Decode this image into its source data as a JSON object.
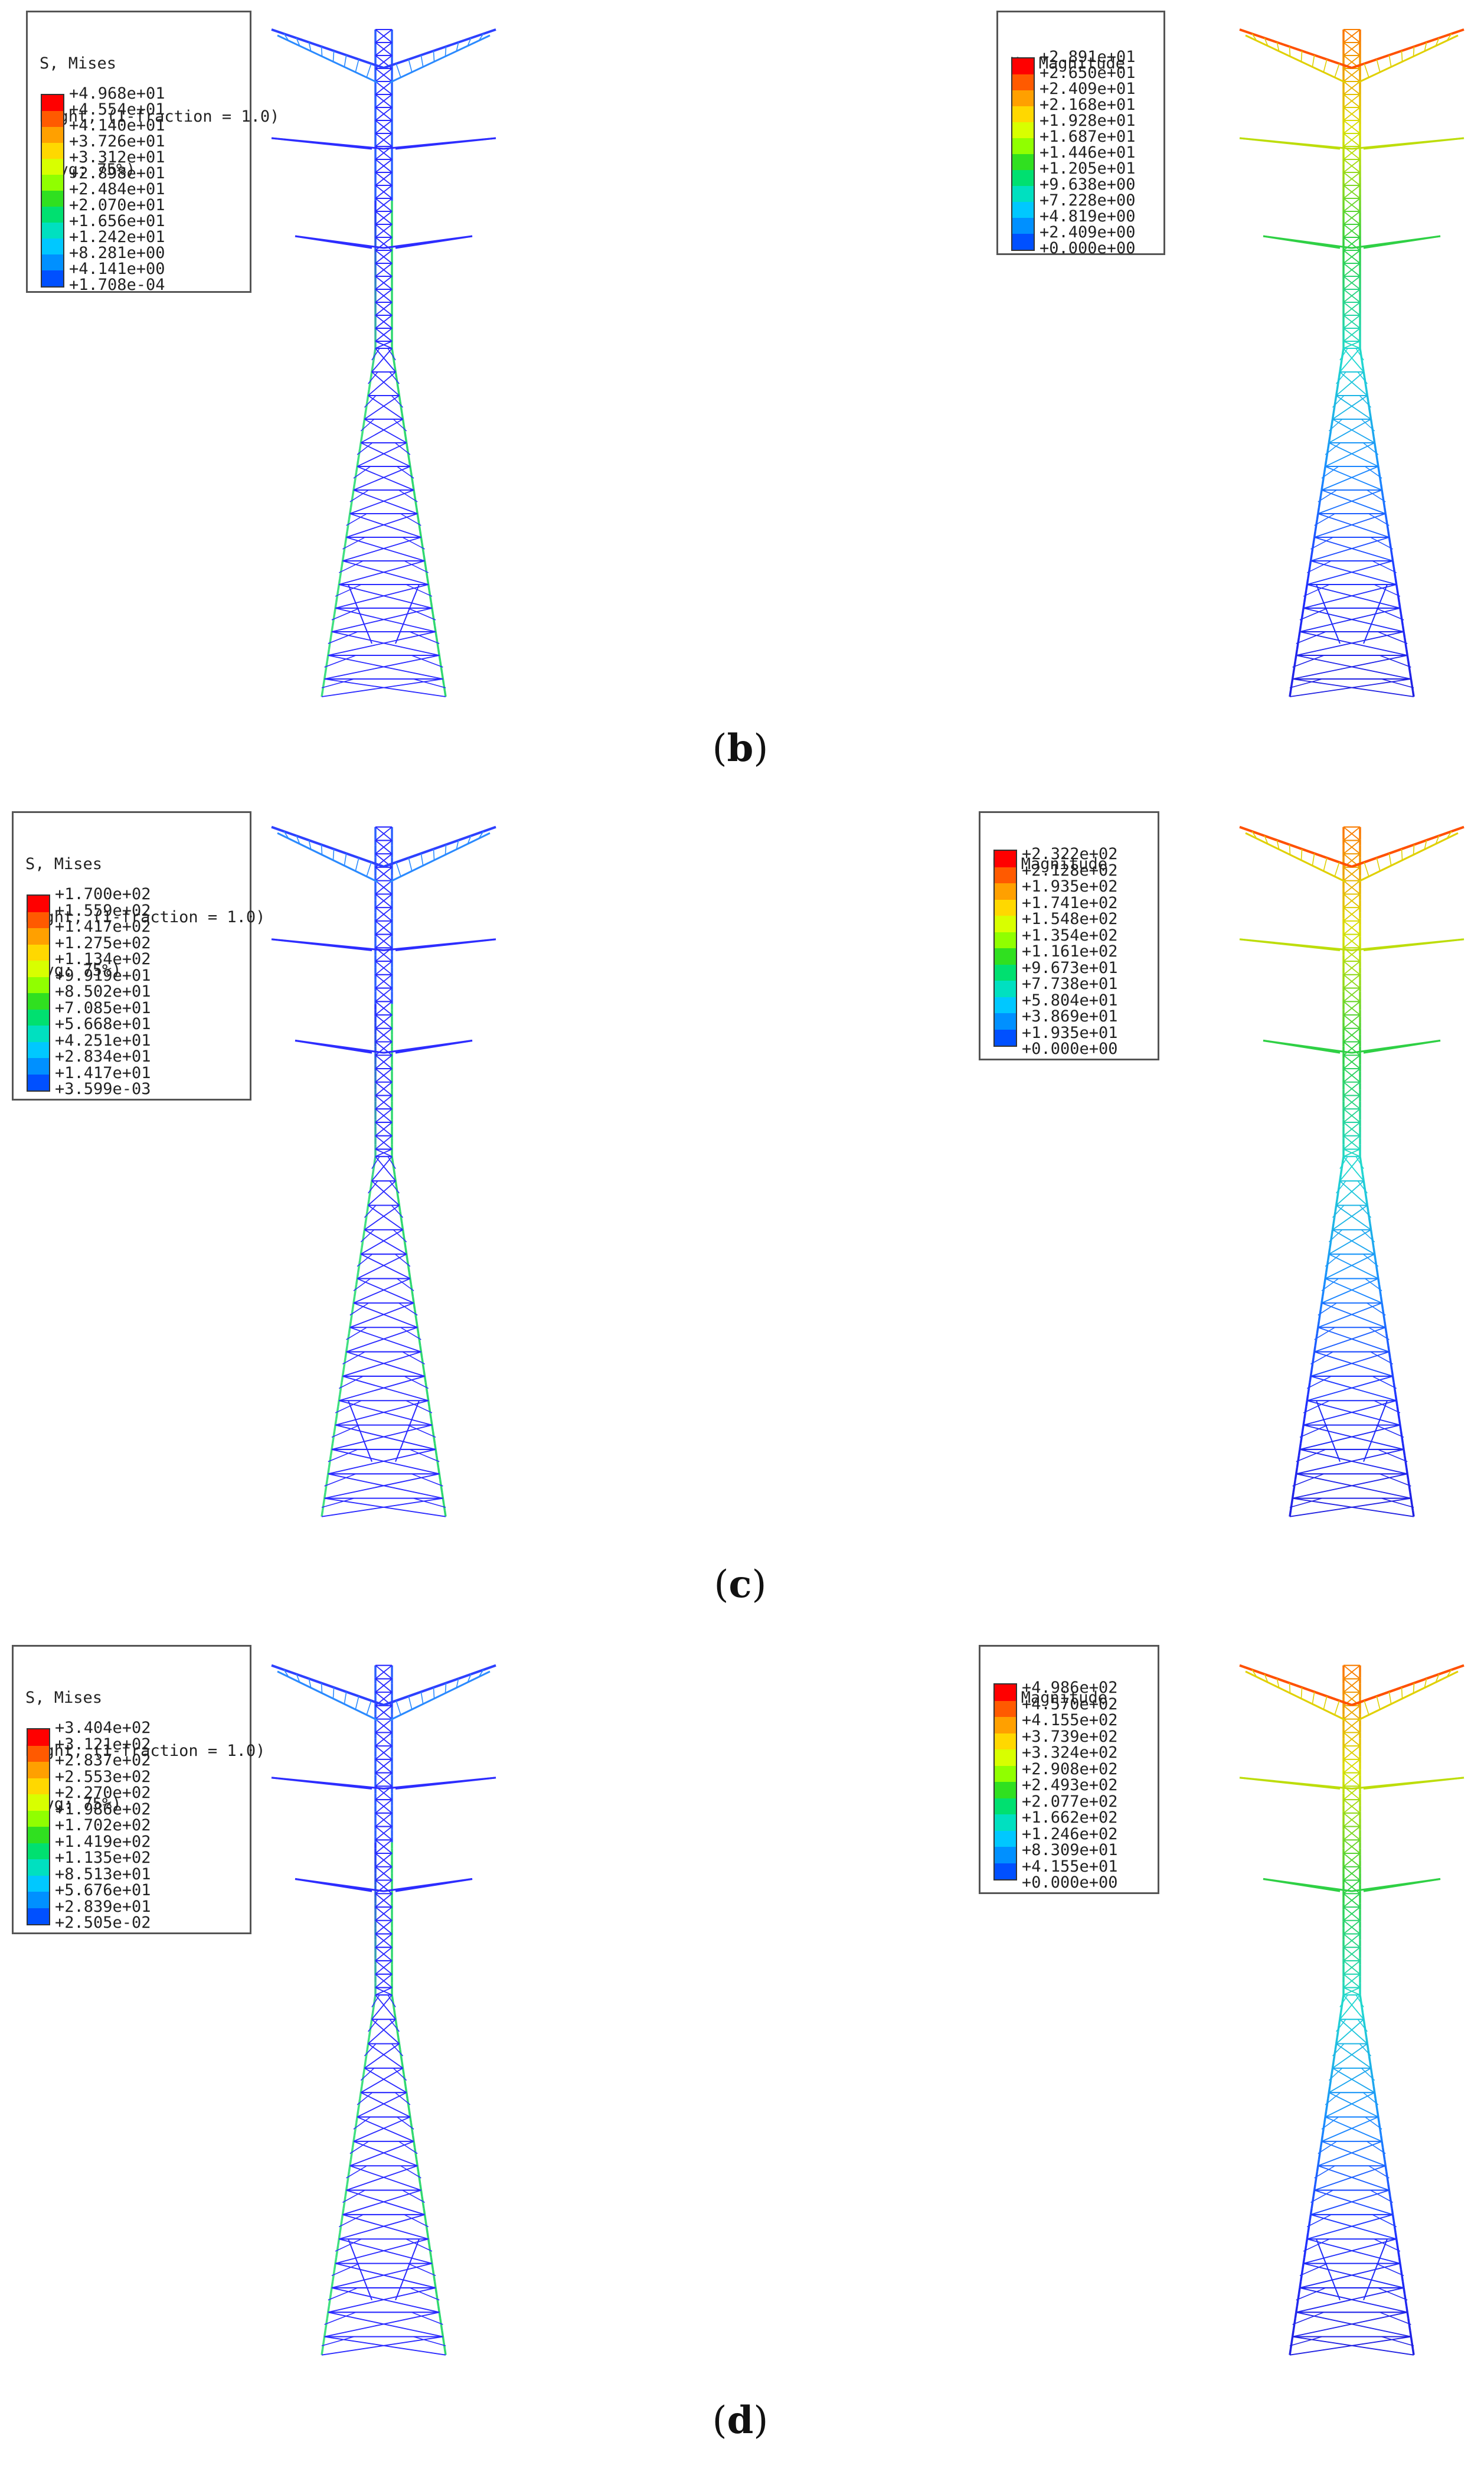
{
  "panels": [
    {
      "id": "b",
      "caption_letter": "b",
      "stress_legend": {
        "title_lines": [
          "S, Mises",
          "Right, (1-fraction = 1.0)",
          "(Avg: 75%)"
        ],
        "values": [
          "+4.968e+01",
          "+4.554e+01",
          "+4.140e+01",
          "+3.726e+01",
          "+3.312e+01",
          "+2.898e+01",
          "+2.484e+01",
          "+2.070e+01",
          "+1.656e+01",
          "+1.242e+01",
          "+8.281e+00",
          "+4.141e+00",
          "+1.708e-04"
        ]
      },
      "disp_legend": {
        "title_lines": [
          "U, Magnitude"
        ],
        "values": [
          "+2.891e+01",
          "+2.650e+01",
          "+2.409e+01",
          "+2.168e+01",
          "+1.928e+01",
          "+1.687e+01",
          "+1.446e+01",
          "+1.205e+01",
          "+9.638e+00",
          "+7.228e+00",
          "+4.819e+00",
          "+2.409e+00",
          "+0.000e+00"
        ]
      }
    },
    {
      "id": "c",
      "caption_letter": "c",
      "stress_legend": {
        "title_lines": [
          "S, Mises",
          "Right, (1-fraction = 1.0)",
          "(Avg: 75%)"
        ],
        "values": [
          "+1.700e+02",
          "+1.559e+02",
          "+1.417e+02",
          "+1.275e+02",
          "+1.134e+02",
          "+9.919e+01",
          "+8.502e+01",
          "+7.085e+01",
          "+5.668e+01",
          "+4.251e+01",
          "+2.834e+01",
          "+1.417e+01",
          "+3.599e-03"
        ]
      },
      "disp_legend": {
        "title_lines": [
          "U, Magnitude"
        ],
        "values": [
          "+2.322e+02",
          "+2.128e+02",
          "+1.935e+02",
          "+1.741e+02",
          "+1.548e+02",
          "+1.354e+02",
          "+1.161e+02",
          "+9.673e+01",
          "+7.738e+01",
          "+5.804e+01",
          "+3.869e+01",
          "+1.935e+01",
          "+0.000e+00"
        ]
      }
    },
    {
      "id": "d",
      "caption_letter": "d",
      "stress_legend": {
        "title_lines": [
          "S, Mises",
          "Right, (1-fraction = 1.0)",
          "(Avg: 75%)"
        ],
        "values": [
          "+3.404e+02",
          "+3.121e+02",
          "+2.837e+02",
          "+2.553e+02",
          "+2.270e+02",
          "+1.986e+02",
          "+1.702e+02",
          "+1.419e+02",
          "+1.135e+02",
          "+8.513e+01",
          "+5.676e+01",
          "+2.839e+01",
          "+2.505e-02"
        ]
      },
      "disp_legend": {
        "title_lines": [
          "U, Magnitude"
        ],
        "values": [
          "+4.986e+02",
          "+4.570e+02",
          "+4.155e+02",
          "+3.739e+02",
          "+3.324e+02",
          "+2.908e+02",
          "+2.493e+02",
          "+2.077e+02",
          "+1.662e+02",
          "+1.246e+02",
          "+8.309e+01",
          "+4.155e+01",
          "+0.000e+00"
        ]
      }
    }
  ],
  "colormap": [
    "#ff0000",
    "#ff5a00",
    "#ffa000",
    "#ffd800",
    "#d8ff00",
    "#90ff00",
    "#30e020",
    "#00e070",
    "#00e0c0",
    "#00c8ff",
    "#0090ff",
    "#0050ff",
    "#0000ff"
  ]
}
